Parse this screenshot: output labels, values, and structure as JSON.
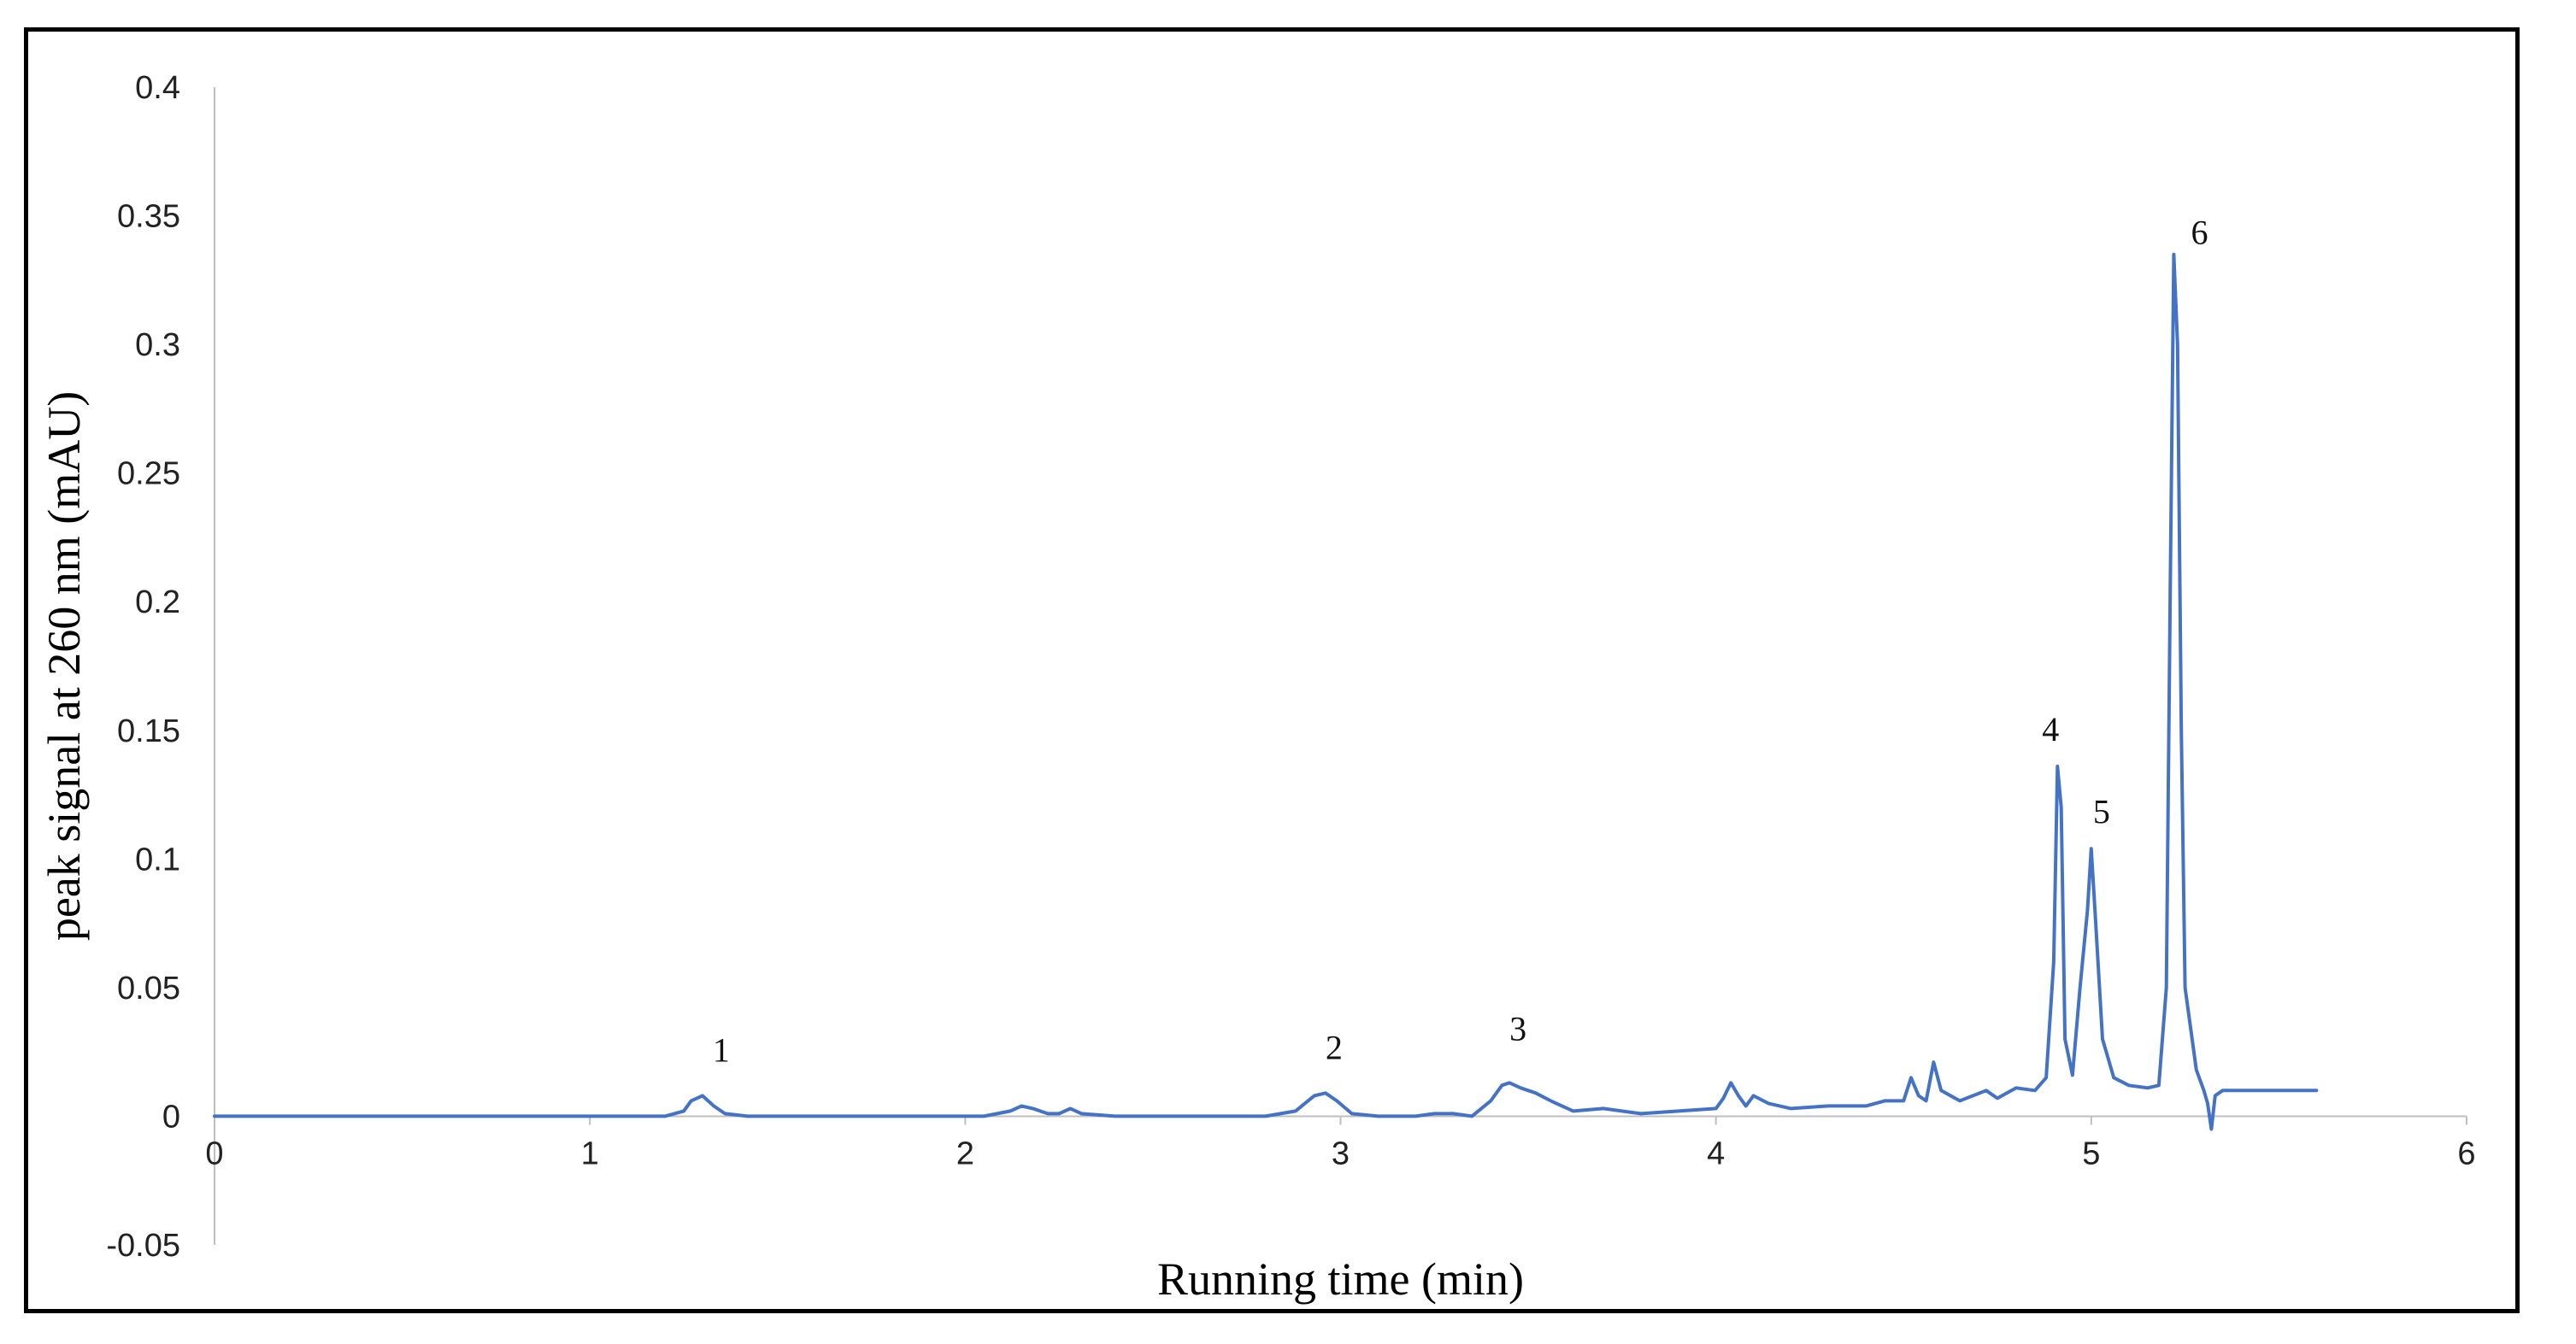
{
  "chart_data": {
    "type": "line",
    "title": "",
    "xlabel": "Running time (min)",
    "ylabel": "peak signal at 260 nm (mAU)",
    "xlim": [
      0,
      6
    ],
    "ylim": [
      -0.05,
      0.4
    ],
    "x_ticks": [
      "0",
      "1",
      "2",
      "3",
      "4",
      "5",
      "6"
    ],
    "y_ticks": [
      "0.4",
      "0.35",
      "0.3",
      "0.25",
      "0.2",
      "0.15",
      "0.1",
      "0.05",
      "0",
      "-0.05"
    ],
    "grid": false,
    "legend": "none",
    "line_color": "#4472c4",
    "series": [
      {
        "x": [
          0,
          0.5,
          1.0,
          1.2,
          1.25,
          1.27,
          1.3,
          1.33,
          1.36,
          1.42,
          1.5,
          1.8,
          2.05,
          2.12,
          2.15,
          2.18,
          2.22,
          2.25,
          2.28,
          2.31,
          2.4,
          2.6,
          2.8,
          2.88,
          2.93,
          2.96,
          2.99,
          3.03,
          3.1,
          3.2,
          3.25,
          3.3,
          3.35,
          3.4,
          3.43,
          3.45,
          3.48,
          3.52,
          3.56,
          3.62,
          3.7,
          3.8,
          3.9,
          4.0,
          4.02,
          4.04,
          4.06,
          4.08,
          4.1,
          4.14,
          4.2,
          4.3,
          4.4,
          4.45,
          4.5,
          4.52,
          4.54,
          4.56,
          4.58,
          4.6,
          4.65,
          4.72,
          4.75,
          4.8,
          4.85,
          4.88,
          4.9,
          4.91,
          4.92,
          4.93,
          4.95,
          4.97,
          4.99,
          5.0,
          5.01,
          5.03,
          5.06,
          5.1,
          5.15,
          5.18,
          5.2,
          5.21,
          5.22,
          5.23,
          5.24,
          5.25,
          5.28,
          5.3,
          5.31,
          5.32,
          5.33,
          5.35,
          5.4,
          5.5,
          5.6
        ],
        "y": [
          0,
          0,
          0,
          0,
          0.002,
          0.006,
          0.008,
          0.004,
          0.001,
          0,
          0,
          0,
          0,
          0.002,
          0.004,
          0.003,
          0.001,
          0.001,
          0.003,
          0.001,
          0,
          0,
          0,
          0.002,
          0.008,
          0.009,
          0.006,
          0.001,
          0,
          0,
          0.001,
          0.001,
          0,
          0.006,
          0.012,
          0.013,
          0.011,
          0.009,
          0.006,
          0.002,
          0.003,
          0.001,
          0.002,
          0.003,
          0.007,
          0.013,
          0.008,
          0.004,
          0.008,
          0.005,
          0.003,
          0.004,
          0.004,
          0.006,
          0.006,
          0.015,
          0.008,
          0.006,
          0.021,
          0.01,
          0.006,
          0.01,
          0.007,
          0.011,
          0.01,
          0.015,
          0.06,
          0.136,
          0.12,
          0.03,
          0.016,
          0.05,
          0.08,
          0.104,
          0.08,
          0.03,
          0.015,
          0.012,
          0.011,
          0.012,
          0.05,
          0.2,
          0.335,
          0.3,
          0.15,
          0.05,
          0.018,
          0.01,
          0.005,
          -0.005,
          0.008,
          0.01,
          0.01,
          0.01,
          0.01
        ]
      }
    ],
    "annotations": [
      {
        "text": "1",
        "x": 1.3,
        "y": 0.008
      },
      {
        "text": "2",
        "x": 2.96,
        "y": 0.009
      },
      {
        "text": "3",
        "x": 3.45,
        "y": 0.013
      },
      {
        "text": "4",
        "x": 4.91,
        "y": 0.136
      },
      {
        "text": "5",
        "x": 5.0,
        "y": 0.104
      },
      {
        "text": "6",
        "x": 5.22,
        "y": 0.335
      }
    ]
  }
}
